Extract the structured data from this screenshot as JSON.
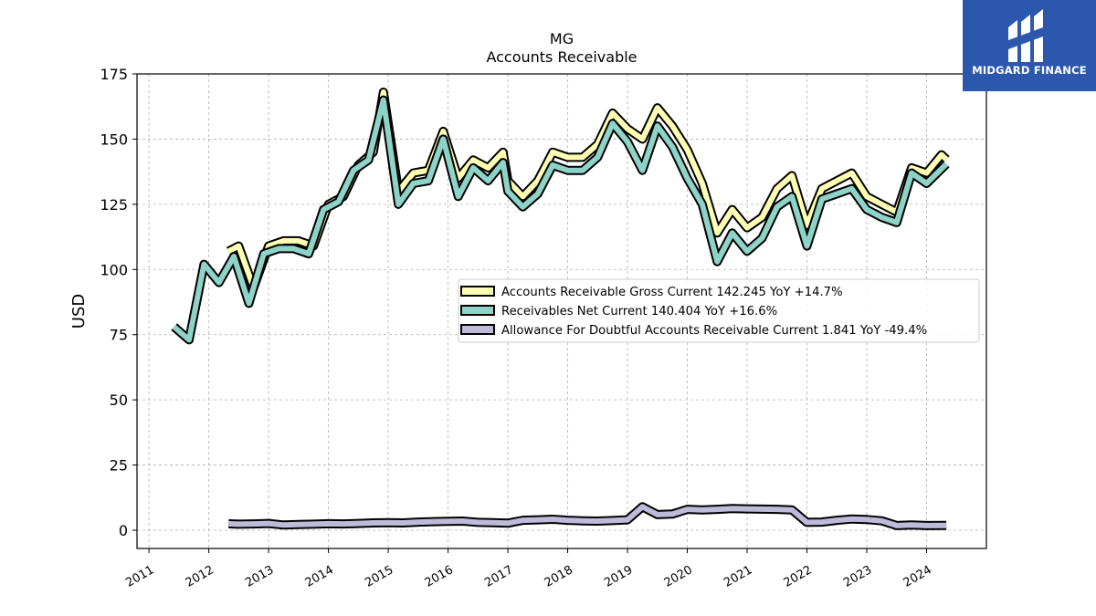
{
  "chart_data": {
    "type": "line",
    "title": "MG",
    "subtitle": "Accounts Receivable",
    "xlabel": "",
    "ylabel": "USD",
    "ylim": [
      -7,
      175
    ],
    "xlim": [
      2010.8,
      2025.0
    ],
    "yticks": [
      0,
      25,
      50,
      75,
      100,
      125,
      150,
      175
    ],
    "xticks": [
      "2011",
      "2012",
      "2013",
      "2014",
      "2015",
      "2016",
      "2017",
      "2018",
      "2019",
      "2020",
      "2021",
      "2022",
      "2023",
      "2024"
    ],
    "grid": true,
    "legend_position": "center-right",
    "series": [
      {
        "name": "Accounts Receivable Gross Current  142.245 YoY +14.7%",
        "color": "#ffffb3",
        "x": [
          2012.33,
          2012.5,
          2012.75,
          2013.0,
          2013.25,
          2013.5,
          2013.75,
          2014.0,
          2014.25,
          2014.5,
          2014.75,
          2014.92,
          2015.17,
          2015.42,
          2015.67,
          2015.92,
          2016.17,
          2016.42,
          2016.67,
          2016.92,
          2017.0,
          2017.25,
          2017.5,
          2017.75,
          2018.0,
          2018.25,
          2018.5,
          2018.75,
          2019.0,
          2019.25,
          2019.5,
          2019.75,
          2020.0,
          2020.25,
          2020.5,
          2020.75,
          2021.0,
          2021.25,
          2021.5,
          2021.75,
          2022.0,
          2022.25,
          2022.5,
          2022.75,
          2023.0,
          2023.25,
          2023.5,
          2023.75,
          2024.0,
          2024.25,
          2024.33
        ],
        "values": [
          107,
          109,
          93,
          109,
          111,
          111,
          109,
          125,
          128,
          140,
          145,
          168,
          130,
          137,
          138,
          153,
          135,
          142,
          139,
          145,
          134,
          128,
          134,
          145,
          143,
          143,
          148,
          160,
          154,
          150,
          162,
          155,
          146,
          133,
          114,
          123,
          116,
          120,
          131,
          136,
          117,
          131,
          134,
          137,
          128,
          125,
          122,
          139,
          137,
          144,
          142.245
        ]
      },
      {
        "name": "Receivables Net Current  140.404 YoY +16.6%",
        "color": "#8dd3c7",
        "x": [
          2011.42,
          2011.67,
          2011.92,
          2012.17,
          2012.42,
          2012.67,
          2012.92,
          2013.17,
          2013.42,
          2013.67,
          2013.92,
          2014.17,
          2014.42,
          2014.67,
          2014.92,
          2015.17,
          2015.42,
          2015.67,
          2015.92,
          2016.17,
          2016.42,
          2016.67,
          2016.92,
          2017.0,
          2017.25,
          2017.5,
          2017.75,
          2018.0,
          2018.25,
          2018.5,
          2018.75,
          2019.0,
          2019.25,
          2019.5,
          2019.75,
          2020.0,
          2020.25,
          2020.5,
          2020.75,
          2021.0,
          2021.25,
          2021.5,
          2021.75,
          2022.0,
          2022.25,
          2022.5,
          2022.75,
          2023.0,
          2023.25,
          2023.5,
          2023.75,
          2024.0,
          2024.33
        ],
        "values": [
          78,
          73,
          102,
          95,
          105,
          87,
          106,
          108,
          108,
          106,
          123,
          126,
          138,
          142,
          165,
          125,
          133,
          134,
          150,
          128,
          139,
          134,
          141,
          130,
          124,
          129,
          140,
          138,
          138,
          143,
          156,
          149,
          138,
          155,
          147,
          135,
          125,
          103,
          114,
          107,
          112,
          124,
          128,
          109,
          127,
          129,
          131,
          123,
          120,
          118,
          137,
          133,
          140.404
        ]
      },
      {
        "name": "Allowance For Doubtful Accounts Receivable Current  1.841 YoY -49.4%",
        "color": "#bebada",
        "x": [
          2012.33,
          2012.5,
          2012.75,
          2013.0,
          2013.25,
          2013.5,
          2013.75,
          2014.0,
          2014.25,
          2014.5,
          2014.75,
          2015.0,
          2015.25,
          2015.5,
          2015.75,
          2016.0,
          2016.25,
          2016.5,
          2016.75,
          2017.0,
          2017.25,
          2017.5,
          2017.75,
          2018.0,
          2018.25,
          2018.5,
          2018.75,
          2019.0,
          2019.25,
          2019.5,
          2019.75,
          2020.0,
          2020.25,
          2020.5,
          2020.75,
          2021.0,
          2021.25,
          2021.5,
          2021.75,
          2022.0,
          2022.25,
          2022.5,
          2022.75,
          2023.0,
          2023.25,
          2023.5,
          2023.75,
          2024.0,
          2024.33
        ],
        "values": [
          2.5,
          2.3,
          2.4,
          2.6,
          2.0,
          2.2,
          2.3,
          2.5,
          2.4,
          2.6,
          2.8,
          2.9,
          2.8,
          3.1,
          3.3,
          3.4,
          3.5,
          3.0,
          2.9,
          2.7,
          3.8,
          4.0,
          4.2,
          3.8,
          3.6,
          3.5,
          3.7,
          4.0,
          9.0,
          6.0,
          6.2,
          8.0,
          7.8,
          8.0,
          8.3,
          8.2,
          8.1,
          8.0,
          7.8,
          3.0,
          3.1,
          3.8,
          4.3,
          4.1,
          3.6,
          1.8,
          2.0,
          1.8,
          1.841
        ]
      }
    ]
  },
  "brand": {
    "name": "MIDGARD FINANCE",
    "background": "#2b58ad"
  }
}
